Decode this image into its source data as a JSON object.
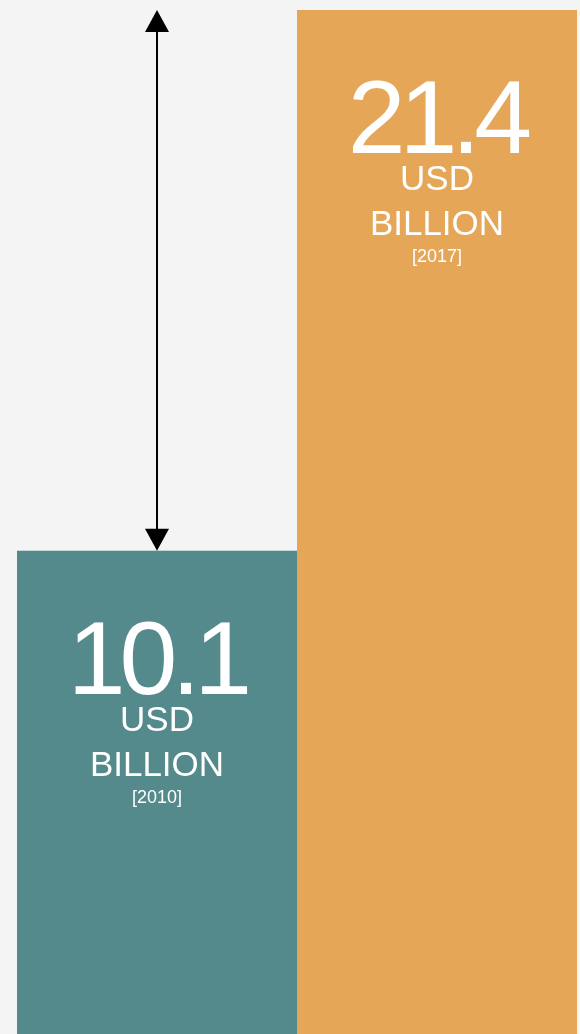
{
  "chart_data": {
    "type": "bar",
    "categories": [
      "[2010]",
      "[2017]"
    ],
    "values": [
      10.1,
      21.4
    ],
    "colors": [
      "#548a8c",
      "#e5a657"
    ],
    "data_labels": true,
    "annotations": [
      "USD BILLION",
      "USD BILLION"
    ]
  }
}
